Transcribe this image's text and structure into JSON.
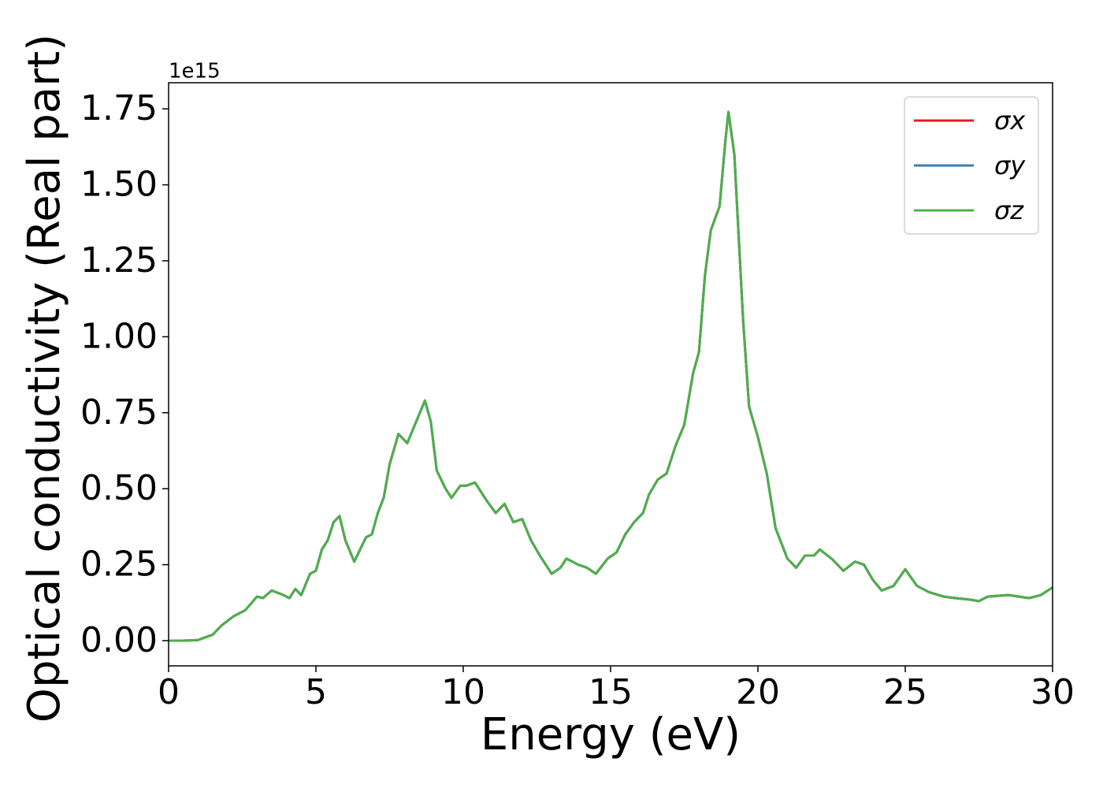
{
  "chart_data": {
    "type": "line",
    "xlabel": "Energy (eV)",
    "ylabel": "Optical conductivity (Real part)",
    "y_offset_label": "1e15",
    "x": [
      0,
      0.5,
      1,
      1.5,
      1.8,
      2.2,
      2.6,
      3.0,
      3.2,
      3.5,
      3.9,
      4.1,
      4.3,
      4.5,
      4.8,
      5.0,
      5.2,
      5.4,
      5.6,
      5.8,
      6.0,
      6.3,
      6.5,
      6.7,
      6.9,
      7.1,
      7.3,
      7.5,
      7.8,
      8.1,
      8.4,
      8.7,
      8.9,
      9.1,
      9.4,
      9.6,
      9.9,
      10.1,
      10.4,
      10.6,
      10.8,
      11.1,
      11.4,
      11.7,
      12.0,
      12.3,
      12.6,
      13.0,
      13.3,
      13.5,
      13.9,
      14.2,
      14.5,
      14.9,
      15.2,
      15.5,
      15.8,
      16.1,
      16.3,
      16.6,
      16.9,
      17.2,
      17.5,
      17.8,
      18.0,
      18.2,
      18.4,
      18.7,
      18.9,
      19.0,
      19.2,
      19.5,
      19.7,
      20.0,
      20.3,
      20.6,
      21.0,
      21.3,
      21.6,
      21.9,
      22.1,
      22.5,
      22.9,
      23.3,
      23.6,
      23.9,
      24.2,
      24.6,
      25.0,
      25.4,
      25.8,
      26.3,
      26.7,
      27.2,
      27.5,
      27.8,
      28.5,
      29.2,
      29.6,
      30
    ],
    "series": [
      {
        "name": "σx",
        "color": "#e41a1c",
        "values": [
          0,
          0,
          0.002,
          0.02,
          0.05,
          0.08,
          0.1,
          0.145,
          0.14,
          0.165,
          0.15,
          0.14,
          0.17,
          0.15,
          0.22,
          0.23,
          0.3,
          0.33,
          0.39,
          0.41,
          0.33,
          0.26,
          0.3,
          0.34,
          0.35,
          0.42,
          0.47,
          0.58,
          0.68,
          0.65,
          0.72,
          0.79,
          0.72,
          0.56,
          0.5,
          0.47,
          0.51,
          0.51,
          0.52,
          0.49,
          0.46,
          0.42,
          0.45,
          0.39,
          0.4,
          0.33,
          0.28,
          0.22,
          0.24,
          0.27,
          0.25,
          0.24,
          0.22,
          0.27,
          0.29,
          0.35,
          0.39,
          0.42,
          0.48,
          0.53,
          0.55,
          0.64,
          0.71,
          0.88,
          0.95,
          1.2,
          1.35,
          1.43,
          1.65,
          1.74,
          1.6,
          1.05,
          0.77,
          0.67,
          0.55,
          0.37,
          0.27,
          0.24,
          0.28,
          0.28,
          0.3,
          0.27,
          0.23,
          0.26,
          0.25,
          0.2,
          0.165,
          0.18,
          0.235,
          0.18,
          0.16,
          0.145,
          0.14,
          0.135,
          0.13,
          0.145,
          0.15,
          0.14,
          0.15,
          0.175
        ]
      },
      {
        "name": "σy",
        "color": "#377eb8",
        "values": [
          0,
          0,
          0.002,
          0.02,
          0.05,
          0.08,
          0.1,
          0.145,
          0.14,
          0.165,
          0.15,
          0.14,
          0.17,
          0.15,
          0.22,
          0.23,
          0.3,
          0.33,
          0.39,
          0.41,
          0.33,
          0.26,
          0.3,
          0.34,
          0.35,
          0.42,
          0.47,
          0.58,
          0.68,
          0.65,
          0.72,
          0.79,
          0.72,
          0.56,
          0.5,
          0.47,
          0.51,
          0.51,
          0.52,
          0.49,
          0.46,
          0.42,
          0.45,
          0.39,
          0.4,
          0.33,
          0.28,
          0.22,
          0.24,
          0.27,
          0.25,
          0.24,
          0.22,
          0.27,
          0.29,
          0.35,
          0.39,
          0.42,
          0.48,
          0.53,
          0.55,
          0.64,
          0.71,
          0.88,
          0.95,
          1.2,
          1.35,
          1.43,
          1.65,
          1.74,
          1.6,
          1.05,
          0.77,
          0.67,
          0.55,
          0.37,
          0.27,
          0.24,
          0.28,
          0.28,
          0.3,
          0.27,
          0.23,
          0.26,
          0.25,
          0.2,
          0.165,
          0.18,
          0.235,
          0.18,
          0.16,
          0.145,
          0.14,
          0.135,
          0.13,
          0.145,
          0.15,
          0.14,
          0.15,
          0.175
        ]
      },
      {
        "name": "σz",
        "color": "#4daf4a",
        "values": [
          0,
          0,
          0.002,
          0.02,
          0.05,
          0.08,
          0.1,
          0.145,
          0.14,
          0.165,
          0.15,
          0.14,
          0.17,
          0.15,
          0.22,
          0.23,
          0.3,
          0.33,
          0.39,
          0.41,
          0.33,
          0.26,
          0.3,
          0.34,
          0.35,
          0.42,
          0.47,
          0.58,
          0.68,
          0.65,
          0.72,
          0.79,
          0.72,
          0.56,
          0.5,
          0.47,
          0.51,
          0.51,
          0.52,
          0.49,
          0.46,
          0.42,
          0.45,
          0.39,
          0.4,
          0.33,
          0.28,
          0.22,
          0.24,
          0.27,
          0.25,
          0.24,
          0.22,
          0.27,
          0.29,
          0.35,
          0.39,
          0.42,
          0.48,
          0.53,
          0.55,
          0.64,
          0.71,
          0.88,
          0.95,
          1.2,
          1.35,
          1.43,
          1.65,
          1.74,
          1.6,
          1.05,
          0.77,
          0.67,
          0.55,
          0.37,
          0.27,
          0.24,
          0.28,
          0.28,
          0.3,
          0.27,
          0.23,
          0.26,
          0.25,
          0.2,
          0.165,
          0.18,
          0.235,
          0.18,
          0.16,
          0.145,
          0.14,
          0.135,
          0.13,
          0.145,
          0.15,
          0.14,
          0.15,
          0.175
        ]
      }
    ],
    "xlim": [
      0,
      30
    ],
    "xticks": [
      0,
      5,
      10,
      15,
      20,
      25,
      30
    ],
    "ylim": [
      -0.083,
      1.836
    ],
    "yticks": [
      {
        "value": 0,
        "label": "0.00"
      },
      {
        "value": 0.25,
        "label": "0.25"
      },
      {
        "value": 0.5,
        "label": "0.50"
      },
      {
        "value": 0.75,
        "label": "0.75"
      },
      {
        "value": 1,
        "label": "1.00"
      },
      {
        "value": 1.25,
        "label": "1.25"
      },
      {
        "value": 1.5,
        "label": "1.50"
      },
      {
        "value": 1.75,
        "label": "1.75"
      }
    ],
    "grid": false,
    "legend": "upper right"
  }
}
